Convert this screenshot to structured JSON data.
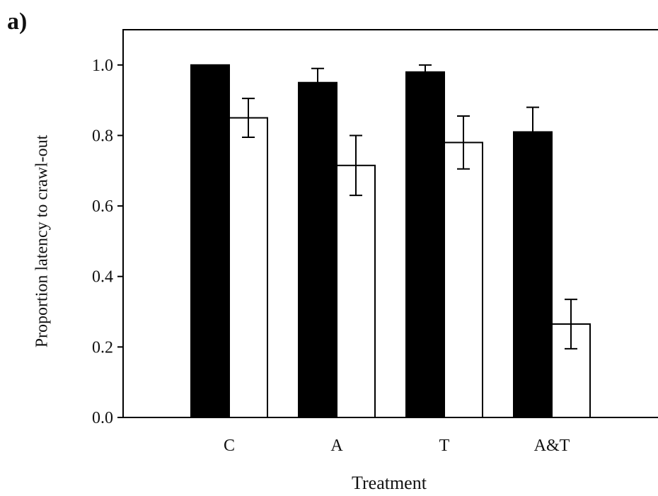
{
  "panel_label": "a)",
  "chart_data": {
    "type": "bar",
    "title": "",
    "xlabel": "Treatment",
    "ylabel": "Proportion latency to crawl-out",
    "categories": [
      "C",
      "A",
      "T",
      "A&T"
    ],
    "ylim": [
      0,
      1.1
    ],
    "yticks": [
      "0.0",
      "0.2",
      "0.4",
      "0.6",
      "0.8",
      "1.0"
    ],
    "series": [
      {
        "fill": "#000000",
        "values": [
          1.0,
          0.95,
          0.98,
          0.81
        ],
        "error": [
          0.0,
          0.04,
          0.02,
          0.07
        ]
      },
      {
        "fill": "#ffffff",
        "values": [
          0.85,
          0.715,
          0.78,
          0.265
        ],
        "error": [
          0.055,
          0.085,
          0.075,
          0.07
        ]
      }
    ],
    "grid": false,
    "legend": "none"
  }
}
